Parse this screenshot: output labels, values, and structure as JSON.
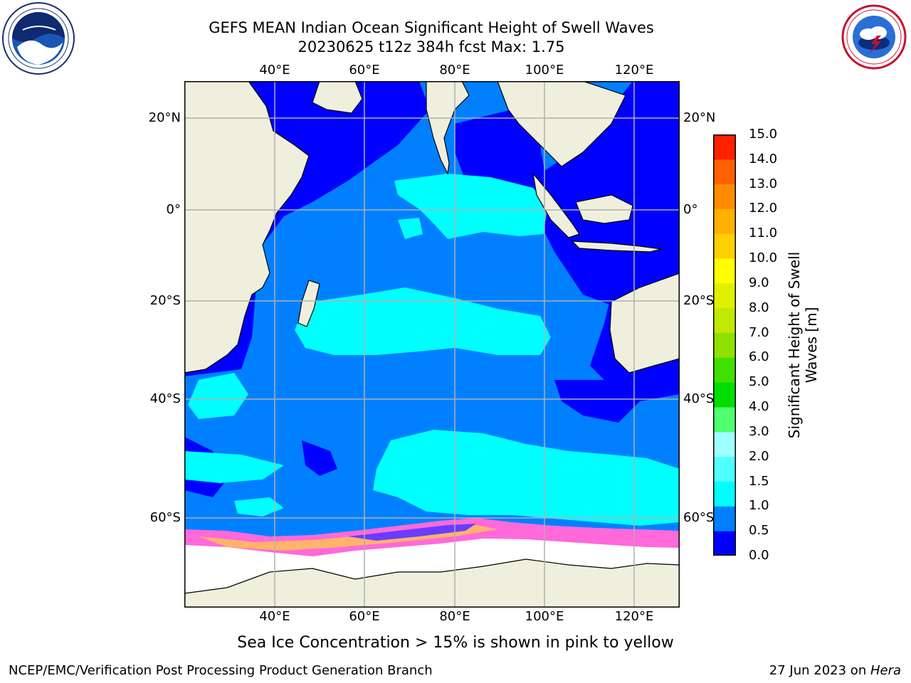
{
  "header": {
    "title_line1": "GEFS MEAN Indian Ocean Significant Height of Swell Waves",
    "title_line2": "20230625 t12z 384h fcst   Max: 1.75"
  },
  "logos": {
    "left": "noaa-logo",
    "right": "nws-logo"
  },
  "map": {
    "lon_ticks": [
      "40°E",
      "60°E",
      "80°E",
      "100°E",
      "120°E"
    ],
    "lat_ticks": [
      "20°N",
      "0°",
      "20°S",
      "40°S",
      "60°S"
    ],
    "colors": {
      "land": "#efefde",
      "ice": "#ffffff",
      "grid": "#b0b0b0"
    }
  },
  "colorbar": {
    "title_line1": "Significant Height of Swell",
    "title_line2": "Waves [m]",
    "levels": [
      "0.0",
      "0.5",
      "1.0",
      "1.5",
      "2.0",
      "3.0",
      "4.0",
      "5.0",
      "6.0",
      "7.0",
      "8.0",
      "9.0",
      "10.0",
      "11.0",
      "12.0",
      "13.0",
      "14.0",
      "15.0"
    ],
    "colors": [
      "#0000ff",
      "#0080ff",
      "#00ffff",
      "#50ffff",
      "#a0ffff",
      "#50ff70",
      "#00dd00",
      "#40e000",
      "#90e000",
      "#c0e800",
      "#e0f000",
      "#ffff00",
      "#ffd000",
      "#ffb000",
      "#ff8c00",
      "#ff6000",
      "#ff2000"
    ]
  },
  "caption": "Sea Ice Concentration > 15% is shown in pink to yellow",
  "footer": {
    "left": "NCEP/EMC/Verification Post Processing Product Generation Branch",
    "date": "27 Jun 2023 on ",
    "machine": "Hera"
  }
}
